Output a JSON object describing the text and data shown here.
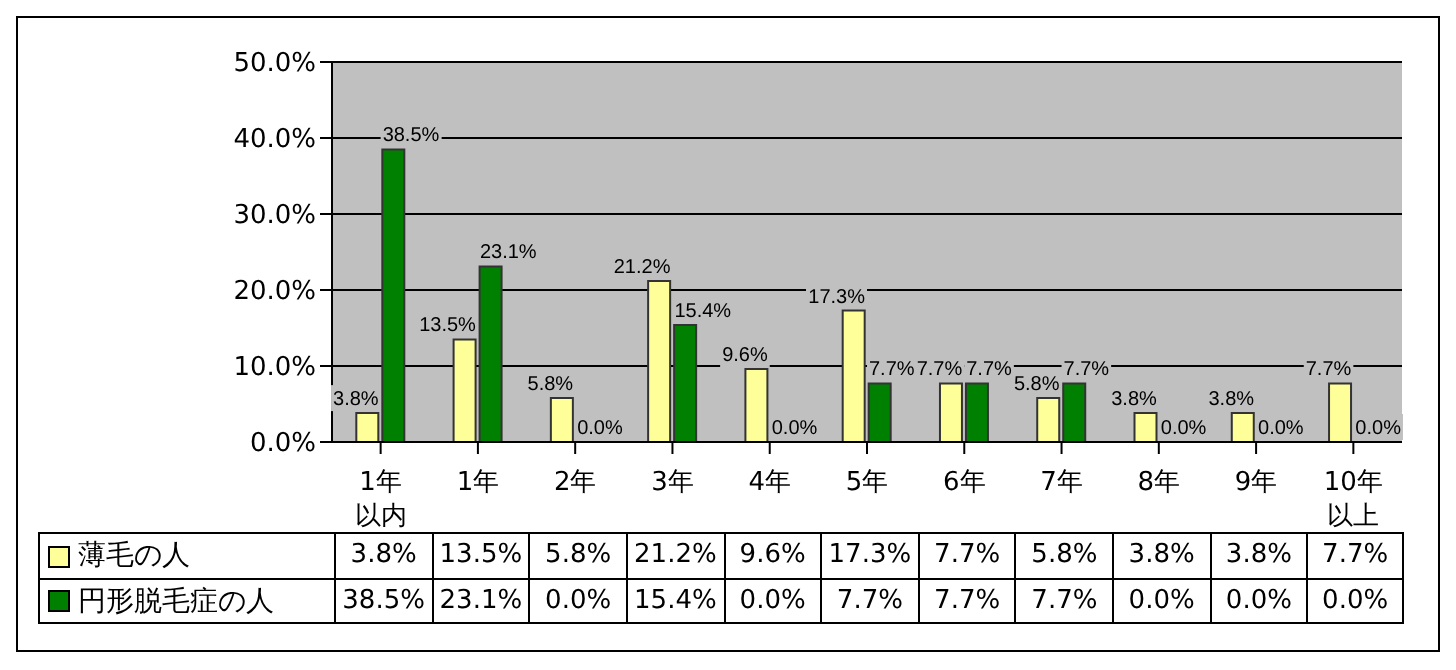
{
  "chart_data": {
    "type": "bar",
    "categories": [
      "1年以内",
      "1年",
      "2年",
      "3年",
      "4年",
      "5年",
      "6年",
      "7年",
      "8年",
      "9年",
      "10年以上"
    ],
    "series": [
      {
        "name": "薄毛の人",
        "color": "#ffff99",
        "values": [
          3.8,
          13.5,
          5.8,
          21.2,
          9.6,
          17.3,
          7.7,
          5.8,
          3.8,
          3.8,
          7.7
        ],
        "value_labels": [
          "3.8%",
          "13.5%",
          "5.8%",
          "21.2%",
          "9.6%",
          "17.3%",
          "7.7%",
          "5.8%",
          "3.8%",
          "3.8%",
          "7.7%"
        ]
      },
      {
        "name": "円形脱毛症の人",
        "color": "#008000",
        "values": [
          38.5,
          23.1,
          0.0,
          15.4,
          0.0,
          7.7,
          7.7,
          7.7,
          0.0,
          0.0,
          0.0
        ],
        "value_labels": [
          "38.5%",
          "23.1%",
          "0.0%",
          "15.4%",
          "0.0%",
          "7.7%",
          "7.7%",
          "7.7%",
          "0.0%",
          "0.0%",
          "0.0%"
        ]
      }
    ],
    "ylim": [
      0,
      50
    ],
    "yticks": [
      {
        "value": 0,
        "label": "0.0%"
      },
      {
        "value": 10,
        "label": "10.0%"
      },
      {
        "value": 20,
        "label": "20.0%"
      },
      {
        "value": 30,
        "label": "30.0%"
      },
      {
        "value": 40,
        "label": "40.0%"
      },
      {
        "value": 50,
        "label": "50.0%"
      }
    ],
    "grid": "y",
    "legend": "bottom"
  }
}
